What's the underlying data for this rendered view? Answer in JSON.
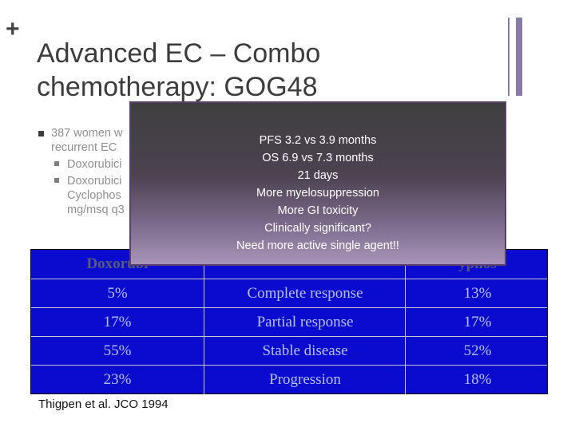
{
  "slide": {
    "plus": "+",
    "title_line1": "Advanced EC – Combo",
    "title_line2": "chemotherapy: GOG48"
  },
  "bullets": {
    "main_line1": "387 women w",
    "main_line2": "recurrent EC",
    "sub1": "Doxorubici",
    "sub2_line1": "Doxorubici",
    "sub2_line2": "Cyclophos",
    "sub2_line3": "mg/msq q3"
  },
  "table": {
    "header": [
      "Doxorubi",
      "",
      "yphos"
    ],
    "rows": [
      [
        "5%",
        "Complete response",
        "13%"
      ],
      [
        "17%",
        "Partial response",
        "17%"
      ],
      [
        "55%",
        "Stable disease",
        "52%"
      ],
      [
        "23%",
        "Progression",
        "18%"
      ]
    ]
  },
  "overlay": {
    "lines": [
      "PFS 3.2 vs 3.9  months",
      "OS 6.9 vs 7.3 months",
      "21 days",
      "More myelosuppression",
      "More GI toxicity",
      "Clinically significant?",
      "Need more active single agent!!"
    ]
  },
  "citation": "Thigpen et al. JCO 1994",
  "colors": {
    "table_bg": "#0b0bd0",
    "overlay_top": "#3f3f3f",
    "overlay_bottom": "#a894b8",
    "accent_bar": "#8a7aa6"
  }
}
